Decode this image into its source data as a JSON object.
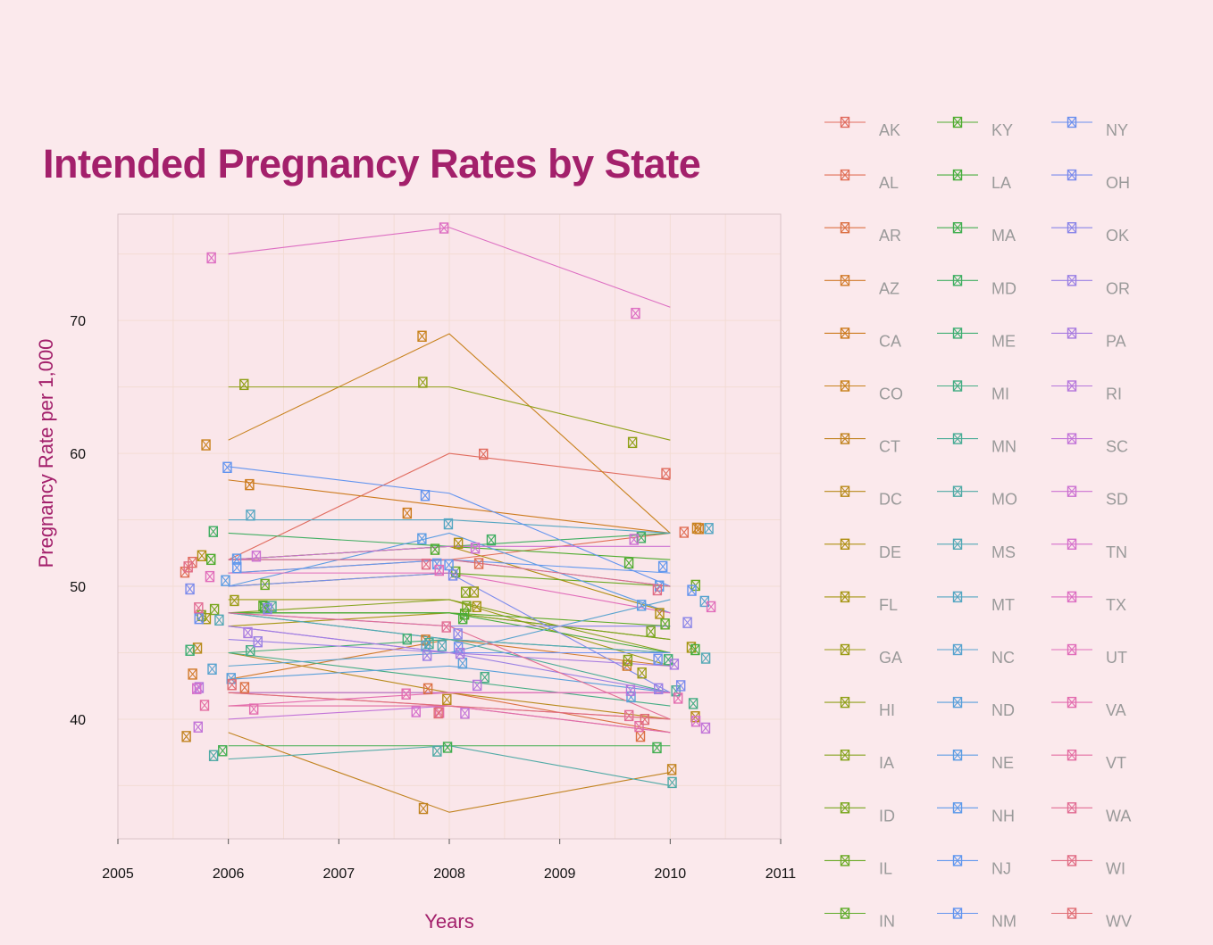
{
  "chart_data": {
    "type": "line",
    "title": "Intended Pregnancy Rates by State",
    "xlabel": "Years",
    "ylabel": "Pregnancy Rate per 1,000",
    "xlim": [
      2005,
      2011
    ],
    "ylim": [
      31,
      78
    ],
    "x_ticks": [
      "2005",
      "2006",
      "2007",
      "2008",
      "2009",
      "2010",
      "2011"
    ],
    "y_ticks": [
      "40",
      "50",
      "60",
      "70"
    ],
    "x": [
      2006,
      2008,
      2010
    ],
    "grid": true,
    "legend_position": "right",
    "series": [
      {
        "name": "AK",
        "color": "#e06b5e",
        "values": [
          52,
          60,
          58
        ]
      },
      {
        "name": "AL",
        "color": "#e06e55",
        "values": [
          51,
          52,
          54
        ]
      },
      {
        "name": "AR",
        "color": "#db7043",
        "values": [
          42,
          42,
          39
        ]
      },
      {
        "name": "AZ",
        "color": "#d17a2a",
        "values": [
          43,
          46,
          44
        ]
      },
      {
        "name": "CA",
        "color": "#cc7a1c",
        "values": [
          58,
          56,
          54
        ]
      },
      {
        "name": "CO",
        "color": "#c8821d",
        "values": [
          61,
          69,
          54
        ]
      },
      {
        "name": "CT",
        "color": "#c18320",
        "values": [
          39,
          33,
          36
        ]
      },
      {
        "name": "DC",
        "color": "#b88a1a",
        "values": [
          45,
          42,
          40
        ]
      },
      {
        "name": "DE",
        "color": "#af8f12",
        "values": [
          52,
          53,
          48
        ]
      },
      {
        "name": "FL",
        "color": "#a59612",
        "values": [
          47,
          48,
          46
        ]
      },
      {
        "name": "GA",
        "color": "#9a9b14",
        "values": [
          49,
          49,
          44
        ]
      },
      {
        "name": "HI",
        "color": "#8fa018",
        "values": [
          65,
          65,
          61
        ]
      },
      {
        "name": "IA",
        "color": "#84a31c",
        "values": [
          48,
          49,
          45
        ]
      },
      {
        "name": "ID",
        "color": "#78a61e",
        "values": [
          48,
          48,
          46
        ]
      },
      {
        "name": "IL",
        "color": "#6aa924",
        "values": [
          50,
          51,
          50
        ]
      },
      {
        "name": "IN",
        "color": "#5dab28",
        "values": [
          48,
          48,
          47
        ]
      },
      {
        "name": "KY",
        "color": "#4fac2f",
        "values": [
          52,
          53,
          52
        ]
      },
      {
        "name": "LA",
        "color": "#47ad3d",
        "values": [
          48,
          48,
          45
        ]
      },
      {
        "name": "MA",
        "color": "#42ae50",
        "values": [
          38,
          38,
          38
        ]
      },
      {
        "name": "MD",
        "color": "#40ae62",
        "values": [
          54,
          53,
          54
        ]
      },
      {
        "name": "ME",
        "color": "#40ae73",
        "values": [
          45,
          46,
          45
        ]
      },
      {
        "name": "MI",
        "color": "#45ad84",
        "values": [
          45,
          43,
          41
        ]
      },
      {
        "name": "MN",
        "color": "#4aac96",
        "values": [
          48,
          46,
          42
        ]
      },
      {
        "name": "MO",
        "color": "#50aaa6",
        "values": [
          37,
          38,
          35
        ]
      },
      {
        "name": "MS",
        "color": "#53a8b5",
        "values": [
          48,
          46,
          45
        ]
      },
      {
        "name": "MT",
        "color": "#55a6c2",
        "values": [
          55,
          55,
          54
        ]
      },
      {
        "name": "NC",
        "color": "#58a3cf",
        "values": [
          44,
          45,
          49
        ]
      },
      {
        "name": "ND",
        "color": "#5aa0da",
        "values": [
          43,
          44,
          42
        ]
      },
      {
        "name": "NE",
        "color": "#5c9de3",
        "values": [
          50,
          54,
          48
        ]
      },
      {
        "name": "NH",
        "color": "#5e9aea",
        "values": [
          52,
          52,
          50
        ]
      },
      {
        "name": "NJ",
        "color": "#6097ee",
        "values": [
          51,
          52,
          51
        ]
      },
      {
        "name": "NM",
        "color": "#6294ef",
        "values": [
          59,
          57,
          50
        ]
      },
      {
        "name": "NY",
        "color": "#6a8fee",
        "values": [
          47,
          45,
          45
        ]
      },
      {
        "name": "OH",
        "color": "#7a8aec",
        "values": [
          50,
          51,
          42
        ]
      },
      {
        "name": "OK",
        "color": "#8a85e8",
        "values": [
          48,
          47,
          47
        ]
      },
      {
        "name": "OR",
        "color": "#9a80e4",
        "values": [
          46,
          45,
          42
        ]
      },
      {
        "name": "PA",
        "color": "#a87be0",
        "values": [
          47,
          45,
          44
        ]
      },
      {
        "name": "RI",
        "color": "#b577dc",
        "values": [
          42,
          42,
          42
        ]
      },
      {
        "name": "SC",
        "color": "#c274d8",
        "values": [
          40,
          41,
          39
        ]
      },
      {
        "name": "SD",
        "color": "#cc71d2",
        "values": [
          52,
          53,
          53
        ]
      },
      {
        "name": "TN",
        "color": "#d56fcb",
        "values": [
          42,
          41,
          40
        ]
      },
      {
        "name": "TX",
        "color": "#dd6ec2",
        "values": [
          75,
          77,
          71
        ]
      },
      {
        "name": "UT",
        "color": "#e16dba",
        "values": [
          51,
          51,
          48
        ]
      },
      {
        "name": "VA",
        "color": "#e36caf",
        "values": [
          41,
          42,
          42
        ]
      },
      {
        "name": "VT",
        "color": "#e36da2",
        "values": [
          41,
          41,
          39
        ]
      },
      {
        "name": "WA",
        "color": "#e26d94",
        "values": [
          48,
          47,
          40
        ]
      },
      {
        "name": "WI",
        "color": "#e16d85",
        "values": [
          52,
          52,
          50
        ]
      },
      {
        "name": "WV",
        "color": "#e06d74",
        "values": [
          42,
          41,
          40
        ]
      }
    ]
  }
}
